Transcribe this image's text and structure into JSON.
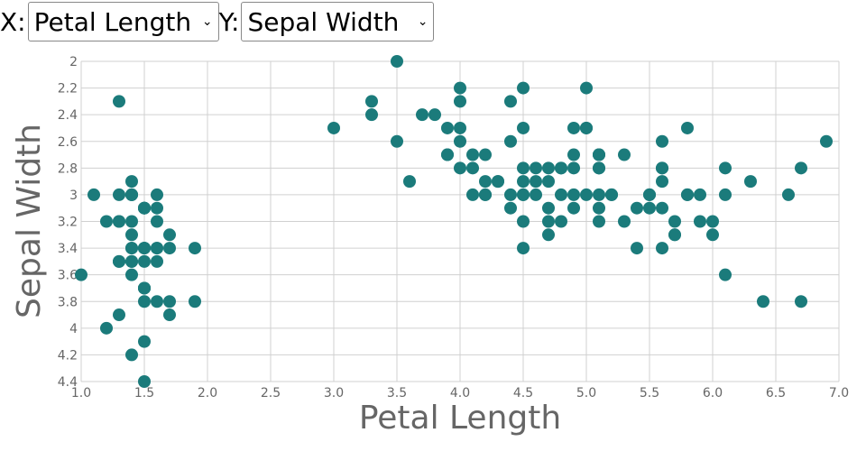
{
  "controls": {
    "x_label": "X:",
    "x_selected": "Petal Length",
    "y_label": "Y:",
    "y_selected": "Sepal Width"
  },
  "chart_data": {
    "type": "scatter",
    "xlabel": "Petal Length",
    "ylabel": "Sepal Width",
    "xlim": [
      1.0,
      7.0
    ],
    "ylim": [
      2,
      4.4
    ],
    "y_inverted": true,
    "grid": true,
    "x_ticks": [
      "1.0",
      "1.5",
      "2.0",
      "2.5",
      "3.0",
      "3.5",
      "4.0",
      "4.5",
      "5.0",
      "5.5",
      "6.0",
      "6.5",
      "7.0"
    ],
    "y_ticks": [
      "2",
      "2.2",
      "2.4",
      "2.6",
      "2.8",
      "3",
      "3.2",
      "3.4",
      "3.6",
      "3.8",
      "4",
      "4.2",
      "4.4"
    ],
    "point_color": "#1b7b7b",
    "x": [
      1.4,
      1.4,
      1.3,
      1.5,
      1.4,
      1.7,
      1.4,
      1.5,
      1.4,
      1.5,
      1.5,
      1.6,
      1.4,
      1.1,
      1.2,
      1.5,
      1.3,
      1.4,
      1.7,
      1.5,
      1.7,
      1.5,
      1.0,
      1.7,
      1.9,
      1.6,
      1.6,
      1.5,
      1.4,
      1.6,
      1.6,
      1.5,
      1.5,
      1.4,
      1.5,
      1.2,
      1.3,
      1.5,
      1.3,
      1.5,
      1.3,
      1.3,
      1.3,
      1.6,
      1.9,
      1.4,
      1.6,
      1.4,
      1.5,
      1.4,
      4.7,
      4.5,
      4.9,
      4.0,
      4.6,
      4.5,
      4.7,
      3.3,
      4.6,
      3.9,
      3.5,
      4.2,
      4.0,
      4.7,
      3.6,
      4.4,
      4.5,
      4.1,
      4.5,
      3.9,
      4.8,
      4.0,
      4.9,
      4.7,
      4.3,
      4.4,
      4.8,
      5.0,
      4.5,
      3.5,
      3.8,
      3.7,
      3.9,
      5.1,
      4.5,
      4.5,
      4.7,
      4.4,
      4.1,
      4.0,
      4.4,
      4.6,
      4.0,
      3.3,
      4.2,
      4.2,
      4.2,
      4.3,
      3.0,
      4.1,
      6.0,
      5.1,
      5.9,
      5.6,
      5.8,
      6.6,
      4.5,
      6.3,
      5.8,
      6.1,
      5.1,
      5.3,
      5.5,
      5.0,
      5.1,
      5.3,
      5.5,
      6.7,
      6.9,
      5.0,
      5.7,
      4.9,
      6.7,
      4.9,
      5.7,
      6.0,
      4.8,
      4.9,
      5.6,
      5.8,
      6.1,
      6.4,
      5.6,
      5.1,
      5.6,
      6.1,
      5.6,
      5.5,
      4.8,
      5.4,
      5.6,
      5.1,
      5.1,
      5.9,
      5.7,
      5.2,
      5.0,
      5.2,
      5.4,
      5.1
    ],
    "y": [
      3.5,
      3.0,
      3.2,
      3.1,
      3.6,
      3.9,
      3.4,
      3.4,
      2.9,
      3.1,
      3.7,
      3.4,
      3.0,
      3.0,
      4.0,
      4.4,
      3.9,
      3.5,
      3.8,
      3.8,
      3.4,
      3.7,
      3.6,
      3.3,
      3.4,
      3.0,
      3.4,
      3.5,
      3.4,
      3.2,
      3.1,
      3.4,
      4.1,
      4.2,
      3.1,
      3.2,
      3.5,
      3.1,
      3.0,
      3.4,
      3.5,
      2.3,
      3.2,
      3.5,
      3.8,
      3.0,
      3.8,
      3.2,
      3.7,
      3.3,
      3.2,
      3.2,
      3.1,
      2.3,
      2.8,
      2.8,
      3.3,
      2.4,
      2.9,
      2.7,
      2.0,
      3.0,
      2.2,
      2.9,
      2.9,
      3.1,
      3.0,
      2.7,
      2.2,
      2.5,
      3.2,
      2.8,
      2.5,
      2.8,
      2.9,
      3.0,
      2.8,
      3.0,
      2.9,
      2.6,
      2.4,
      2.4,
      2.7,
      2.7,
      3.0,
      3.4,
      3.1,
      2.3,
      3.0,
      2.5,
      2.6,
      3.0,
      2.6,
      2.3,
      2.7,
      3.0,
      2.9,
      2.9,
      2.5,
      2.8,
      3.3,
      2.7,
      3.0,
      2.9,
      3.0,
      3.0,
      2.5,
      2.9,
      2.5,
      3.6,
      3.2,
      2.7,
      3.0,
      2.5,
      2.8,
      3.2,
      3.0,
      3.8,
      2.6,
      2.2,
      3.2,
      2.8,
      2.8,
      2.7,
      3.3,
      3.2,
      2.8,
      3.0,
      2.8,
      3.0,
      2.8,
      3.8,
      2.8,
      2.8,
      2.6,
      3.0,
      3.4,
      3.1,
      3.0,
      3.1,
      3.1,
      3.1,
      2.7,
      3.2,
      3.3,
      3.0,
      2.5,
      3.0,
      3.4,
      3.0
    ]
  }
}
